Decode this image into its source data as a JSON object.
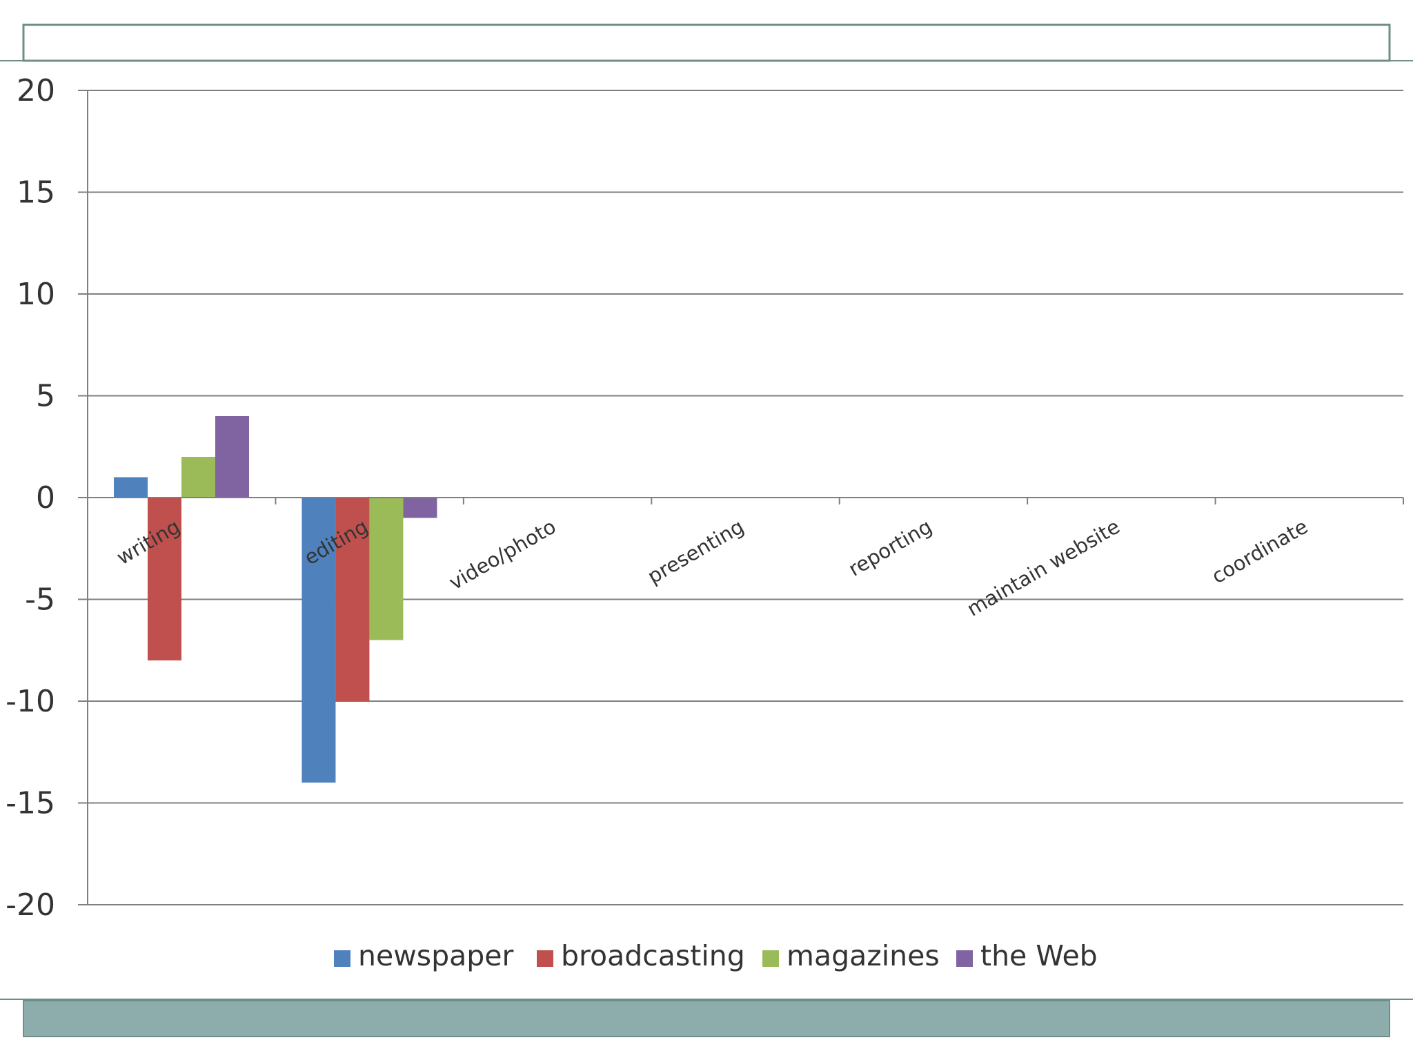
{
  "colors": {
    "frame_border": "#6f8f86",
    "footer_bar": "#8cadab",
    "grid": "#7f7f7f",
    "axis": "#7f7f7f"
  },
  "chart_data": {
    "type": "bar",
    "categories": [
      "writing",
      "editing",
      "video/photo",
      "presenting",
      "reporting",
      "maintain website",
      "coordinate"
    ],
    "series": [
      {
        "name": "newspaper",
        "color": "#4f81bd",
        "values": [
          1,
          -14,
          null,
          null,
          null,
          null,
          null
        ]
      },
      {
        "name": "broadcasting",
        "color": "#c0504d",
        "values": [
          -8,
          -10,
          null,
          null,
          null,
          null,
          null
        ]
      },
      {
        "name": "magazines",
        "color": "#9bbb59",
        "values": [
          2,
          -7,
          null,
          null,
          null,
          null,
          null
        ]
      },
      {
        "name": "the Web",
        "color": "#8064a2",
        "values": [
          4,
          -1,
          null,
          null,
          null,
          null,
          null
        ]
      }
    ],
    "ylim": [
      -20,
      20
    ],
    "yticks": [
      20,
      15,
      10,
      5,
      0,
      -5,
      -10,
      -15,
      -20
    ],
    "grid": true,
    "legend": "bottom",
    "title": "",
    "xlabel": "",
    "ylabel": ""
  }
}
